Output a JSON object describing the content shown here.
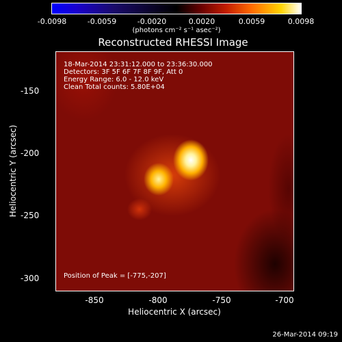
{
  "colorbar": {
    "ticks": [
      "-0.0098",
      "-0.0059",
      "-0.0020",
      "0.0020",
      "0.0059",
      "0.0098"
    ],
    "units": "(photons cm⁻² s⁻¹ asec⁻²)"
  },
  "title": "Reconstructed RHESSI Image",
  "info": {
    "time_range": "18-Mar-2014 23:31:12.000 to 23:36:30.000",
    "detectors": "Detectors: 3F 5F 6F 7F 8F 9F, Att 0",
    "energy": "Energy Range: 6.0 - 12.0 keV",
    "clean": "Clean    Total counts: 5.80E+04",
    "peak": "Position of Peak = [-775,-207]"
  },
  "x_axis": {
    "label": "Heliocentric X (arcsec)",
    "ticks": [
      "-850",
      "-800",
      "-750",
      "-700"
    ]
  },
  "y_axis": {
    "label": "Heliocentric Y (arcsec)",
    "ticks": [
      "-150",
      "-200",
      "-250",
      "-300"
    ]
  },
  "timestamp": "26-Mar-2014 09:19"
}
